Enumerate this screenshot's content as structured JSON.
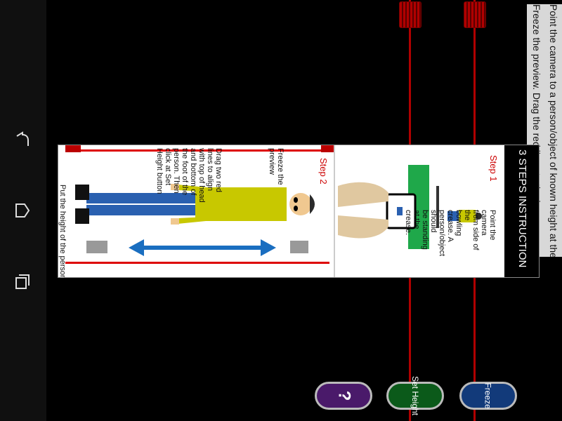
{
  "nav": {
    "back": "back-icon",
    "home": "home-icon",
    "recents": "recents-icon"
  },
  "instructions": {
    "line1": "Point the camera to a person/object of known height at the bowling crease.",
    "line2": "Freeze the preview. Drag the red lines to the hea"
  },
  "dialog": {
    "title": "3 STEPS INSTRUCTION",
    "step1": {
      "label": "Step 1",
      "text": [
        "Point the camera",
        "from side of the",
        "bowling crease. A",
        "person/object should",
        "be standing at the",
        "crease."
      ]
    },
    "step2": {
      "label": "Step 2",
      "freeze_text": [
        "Freeze the",
        "preview"
      ],
      "drag_text": [
        "Drag two red",
        "lines to align",
        "with top of head",
        "and bottom of",
        "the foot of the",
        "person. Then",
        "click at Set",
        "Height button"
      ]
    },
    "step3_partial": "Put the height of the person"
  },
  "buttons": {
    "help": "?",
    "set_height": "Set Height",
    "freeze": "Freeze"
  },
  "colors": {
    "red_line": "#b00000",
    "help_button": "#4a1a6a",
    "set_height_button": "#0b5a1a",
    "freeze_button": "#123a7a"
  }
}
